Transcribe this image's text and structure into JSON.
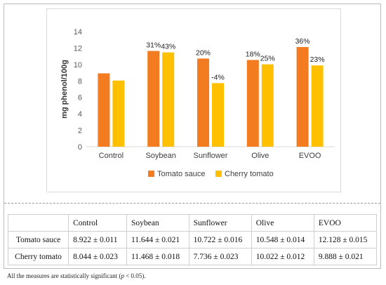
{
  "chart_data": {
    "type": "bar",
    "categories": [
      "Control",
      "Soybean",
      "Sunflower",
      "Olive",
      "EVOO"
    ],
    "series": [
      {
        "name": "Tomato sauce",
        "values": [
          8.922,
          11.644,
          10.722,
          10.548,
          12.128
        ],
        "labels": [
          "",
          "31%",
          "20%",
          "18%",
          "36%"
        ],
        "color": "#f47c20"
      },
      {
        "name": "Cherry tomato",
        "values": [
          8.044,
          11.468,
          7.736,
          10.022,
          9.888
        ],
        "labels": [
          "",
          "43%",
          "-4%",
          "25%",
          "23%"
        ],
        "color": "#ffc000"
      }
    ],
    "ylabel": "mg phenol/100g",
    "yticks": [
      "0",
      "2",
      "4",
      "6",
      "8",
      "10",
      "12",
      "14"
    ],
    "ylim": [
      0,
      14
    ],
    "legend_position": "bottom",
    "grid": false
  },
  "table": {
    "headers": [
      "",
      "Control",
      "Soybean",
      "Sunflower",
      "Olive",
      "EVOO"
    ],
    "rows": [
      {
        "label": "Tomato sauce",
        "cells": [
          "8.922 ± 0.011",
          "11.644 ± 0.021",
          "10.722 ± 0.016",
          "10.548 ± 0.014",
          "12.128 ± 0.015"
        ]
      },
      {
        "label": "Cherry tomato",
        "cells": [
          "8.044 ± 0.023",
          "11.468 ± 0.018",
          "7.736 ± 0.023",
          "10.022 ± 0.012",
          "9.888 ± 0.021"
        ]
      }
    ]
  },
  "footnote": {
    "before": "All the measures are statistically significant (",
    "italic": "p",
    "after": " < 0.05)."
  }
}
